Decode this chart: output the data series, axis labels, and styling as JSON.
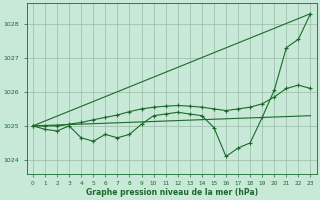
{
  "title": "Graphe pression niveau de la mer (hPa)",
  "bg_color": "#c8e8d8",
  "grid_color": "#99bbaa",
  "line_color": "#1a6b2a",
  "xlim": [
    -0.5,
    23.5
  ],
  "ylim": [
    1023.6,
    1028.6
  ],
  "yticks": [
    1024,
    1025,
    1026,
    1027,
    1028
  ],
  "xticks": [
    0,
    1,
    2,
    3,
    4,
    5,
    6,
    7,
    8,
    9,
    10,
    11,
    12,
    13,
    14,
    15,
    16,
    17,
    18,
    19,
    20,
    21,
    22,
    23
  ],
  "line1_x": [
    0,
    1,
    2,
    3,
    4,
    5,
    6,
    7,
    8,
    9,
    10,
    11,
    12,
    13,
    14,
    15,
    16,
    17,
    18,
    19,
    20,
    21,
    22,
    23
  ],
  "line1_y": [
    1025.0,
    1024.9,
    1024.85,
    1025.0,
    1024.65,
    1024.55,
    1024.75,
    1024.65,
    1024.75,
    1025.05,
    1025.3,
    1025.35,
    1025.4,
    1025.35,
    1025.3,
    1024.95,
    1024.1,
    1024.35,
    1024.5,
    1025.25,
    1026.05,
    1027.3,
    1027.55,
    1028.3
  ],
  "line2_x": [
    0,
    23
  ],
  "line2_y": [
    1025.0,
    1028.3
  ],
  "line3_x": [
    0,
    23
  ],
  "line3_y": [
    1025.0,
    1025.3
  ],
  "line4_x": [
    0,
    1,
    2,
    3,
    4,
    5,
    6,
    7,
    8,
    9,
    10,
    11,
    12,
    13,
    14,
    15,
    16,
    17,
    18,
    19,
    20,
    21,
    22,
    23
  ],
  "line4_y": [
    1025.0,
    1025.0,
    1025.0,
    1025.05,
    1025.1,
    1025.18,
    1025.25,
    1025.32,
    1025.42,
    1025.5,
    1025.55,
    1025.58,
    1025.6,
    1025.58,
    1025.55,
    1025.5,
    1025.45,
    1025.5,
    1025.55,
    1025.65,
    1025.85,
    1026.1,
    1026.2,
    1026.1
  ]
}
